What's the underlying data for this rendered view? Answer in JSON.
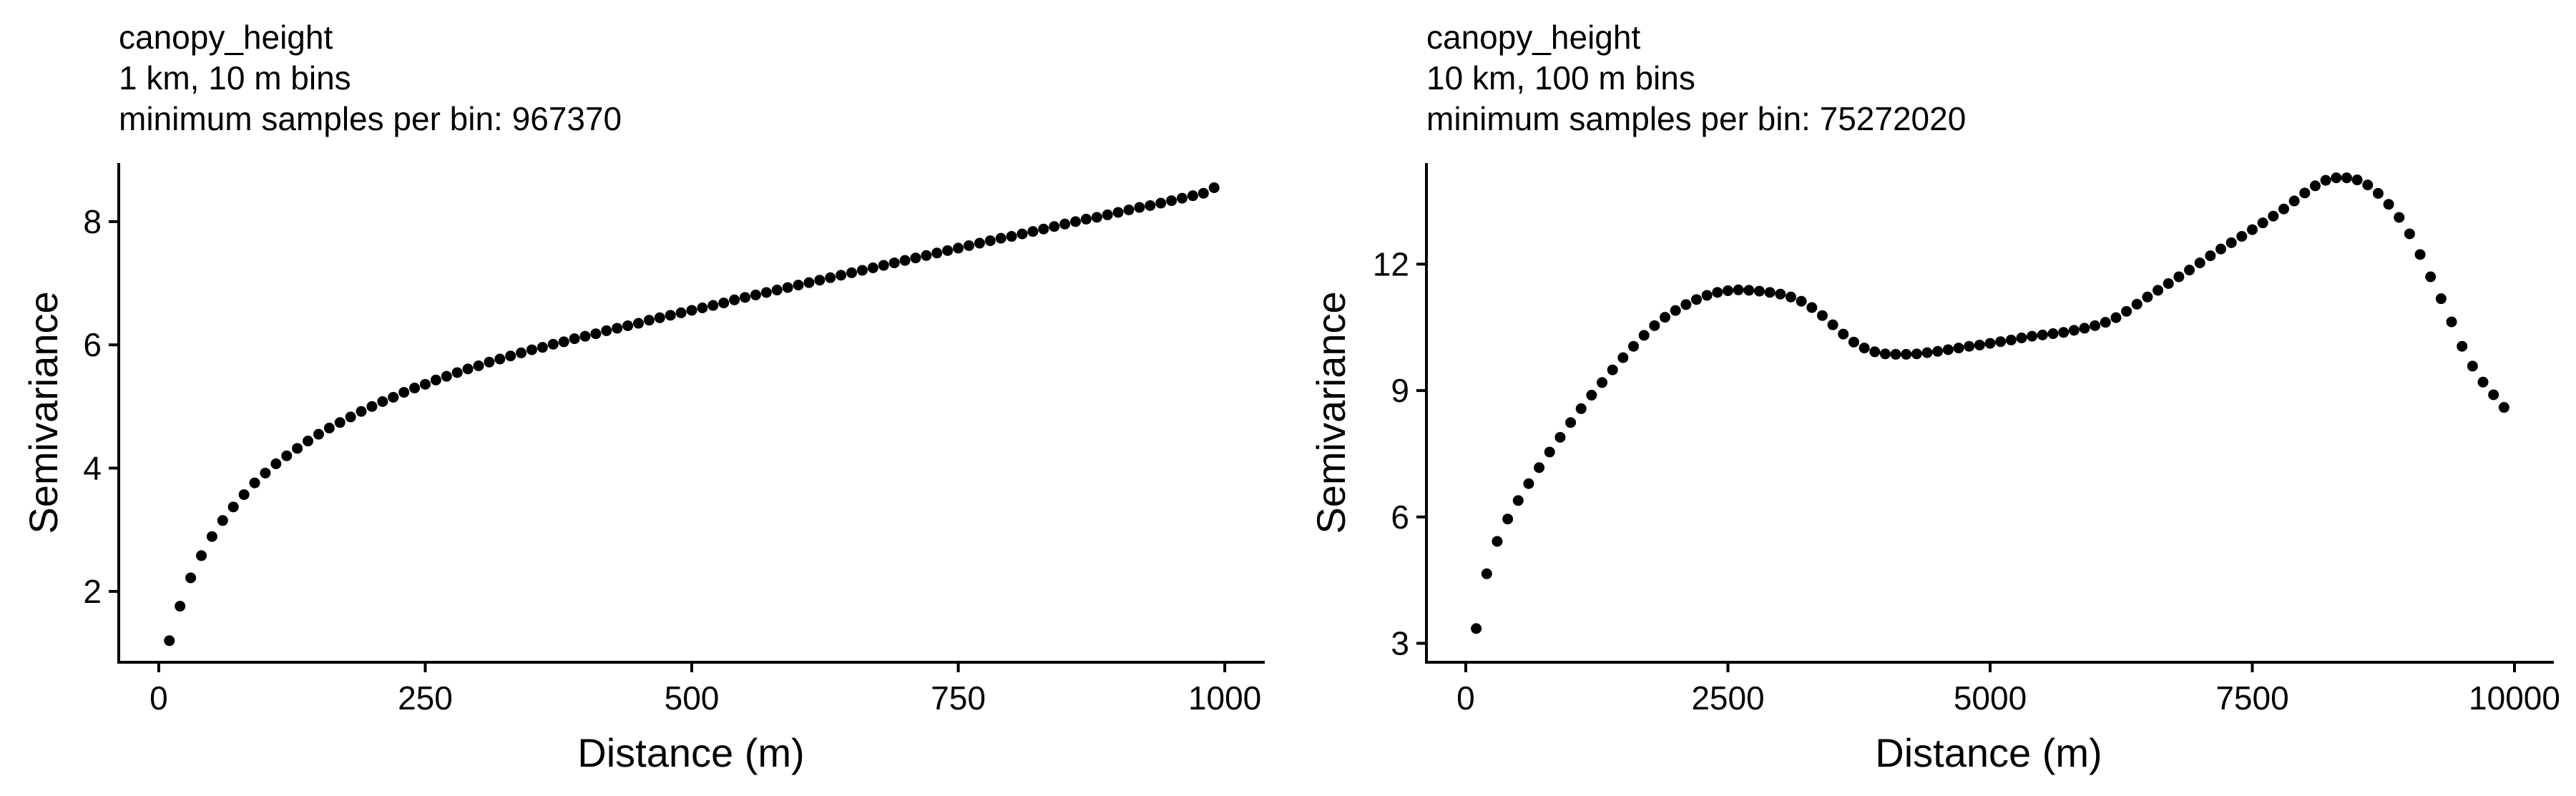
{
  "chart_data": [
    {
      "type": "scatter",
      "title_lines": [
        "canopy_height",
        "1 km, 10 m bins",
        "minimum samples per bin: 967370"
      ],
      "xlabel": "Distance (m)",
      "ylabel": "Semivariance",
      "xlim": [
        -37.5,
        1037.5
      ],
      "ylim": [
        0.85,
        8.95
      ],
      "xticks": [
        0,
        250,
        500,
        750,
        1000
      ],
      "yticks": [
        2,
        4,
        6,
        8
      ],
      "x": [
        10,
        20,
        30,
        40,
        50,
        60,
        70,
        80,
        90,
        100,
        110,
        120,
        130,
        140,
        150,
        160,
        170,
        180,
        190,
        200,
        210,
        220,
        230,
        240,
        250,
        260,
        270,
        280,
        290,
        300,
        310,
        320,
        330,
        340,
        350,
        360,
        370,
        380,
        390,
        400,
        410,
        420,
        430,
        440,
        450,
        460,
        470,
        480,
        490,
        500,
        510,
        520,
        530,
        540,
        550,
        560,
        570,
        580,
        590,
        600,
        610,
        620,
        630,
        640,
        650,
        660,
        670,
        680,
        690,
        700,
        710,
        720,
        730,
        740,
        750,
        760,
        770,
        780,
        790,
        800,
        810,
        820,
        830,
        840,
        850,
        860,
        870,
        880,
        890,
        900,
        910,
        920,
        930,
        940,
        950,
        960,
        970,
        980,
        990
      ],
      "y": [
        1.2,
        1.76,
        2.22,
        2.58,
        2.89,
        3.15,
        3.37,
        3.57,
        3.76,
        3.92,
        4.07,
        4.2,
        4.32,
        4.44,
        4.55,
        4.65,
        4.74,
        4.83,
        4.92,
        5.0,
        5.08,
        5.15,
        5.23,
        5.3,
        5.36,
        5.43,
        5.49,
        5.55,
        5.61,
        5.66,
        5.72,
        5.77,
        5.82,
        5.87,
        5.92,
        5.96,
        6.01,
        6.05,
        6.1,
        6.14,
        6.18,
        6.23,
        6.27,
        6.31,
        6.35,
        6.4,
        6.44,
        6.48,
        6.52,
        6.56,
        6.6,
        6.64,
        6.68,
        6.73,
        6.77,
        6.81,
        6.85,
        6.89,
        6.93,
        6.97,
        7.01,
        7.05,
        7.09,
        7.13,
        7.17,
        7.21,
        7.25,
        7.29,
        7.33,
        7.37,
        7.41,
        7.45,
        7.49,
        7.53,
        7.57,
        7.61,
        7.65,
        7.69,
        7.73,
        7.76,
        7.8,
        7.84,
        7.88,
        7.92,
        7.96,
        8.0,
        8.04,
        8.07,
        8.11,
        8.15,
        8.19,
        8.23,
        8.26,
        8.3,
        8.34,
        8.38,
        8.42,
        8.46,
        8.55
      ]
    },
    {
      "type": "scatter",
      "title_lines": [
        "canopy_height",
        "10 km, 100 m bins",
        "minimum samples per bin: 75272020"
      ],
      "xlabel": "Distance (m)",
      "ylabel": "Semivariance",
      "xlim": [
        -375,
        10375
      ],
      "ylim": [
        2.55,
        14.4
      ],
      "xticks": [
        0,
        2500,
        5000,
        7500,
        10000
      ],
      "yticks": [
        3,
        6,
        9,
        12
      ],
      "x": [
        100,
        200,
        300,
        400,
        500,
        600,
        700,
        800,
        900,
        1000,
        1100,
        1200,
        1300,
        1400,
        1500,
        1600,
        1700,
        1800,
        1900,
        2000,
        2100,
        2200,
        2300,
        2400,
        2500,
        2600,
        2700,
        2800,
        2900,
        3000,
        3100,
        3200,
        3300,
        3400,
        3500,
        3600,
        3700,
        3800,
        3900,
        4000,
        4100,
        4200,
        4300,
        4400,
        4500,
        4600,
        4700,
        4800,
        4900,
        5000,
        5100,
        5200,
        5300,
        5400,
        5500,
        5600,
        5700,
        5800,
        5900,
        6000,
        6100,
        6200,
        6300,
        6400,
        6500,
        6600,
        6700,
        6800,
        6900,
        7000,
        7100,
        7200,
        7300,
        7400,
        7500,
        7600,
        7700,
        7800,
        7900,
        8000,
        8100,
        8200,
        8300,
        8400,
        8500,
        8600,
        8700,
        8800,
        8900,
        9000,
        9100,
        9200,
        9300,
        9400,
        9500,
        9600,
        9700,
        9800,
        9900
      ],
      "y": [
        3.35,
        4.65,
        5.42,
        5.95,
        6.39,
        6.79,
        7.17,
        7.54,
        7.89,
        8.24,
        8.57,
        8.89,
        9.19,
        9.49,
        9.78,
        10.05,
        10.31,
        10.54,
        10.74,
        10.9,
        11.04,
        11.16,
        11.26,
        11.33,
        11.37,
        11.39,
        11.38,
        11.36,
        11.33,
        11.29,
        11.22,
        11.12,
        10.97,
        10.78,
        10.56,
        10.34,
        10.15,
        10.01,
        9.92,
        9.87,
        9.86,
        9.86,
        9.87,
        9.9,
        9.93,
        9.97,
        10.01,
        10.05,
        10.08,
        10.12,
        10.16,
        10.2,
        10.25,
        10.29,
        10.32,
        10.35,
        10.38,
        10.43,
        10.48,
        10.54,
        10.62,
        10.73,
        10.88,
        11.05,
        11.22,
        11.38,
        11.54,
        11.7,
        11.86,
        12.03,
        12.2,
        12.36,
        12.51,
        12.66,
        12.82,
        12.98,
        13.14,
        13.31,
        13.5,
        13.69,
        13.86,
        13.99,
        14.05,
        14.05,
        14.0,
        13.88,
        13.68,
        13.42,
        13.11,
        12.72,
        12.23,
        11.7,
        11.18,
        10.63,
        10.05,
        9.58,
        9.2,
        8.9,
        8.6
      ]
    }
  ]
}
